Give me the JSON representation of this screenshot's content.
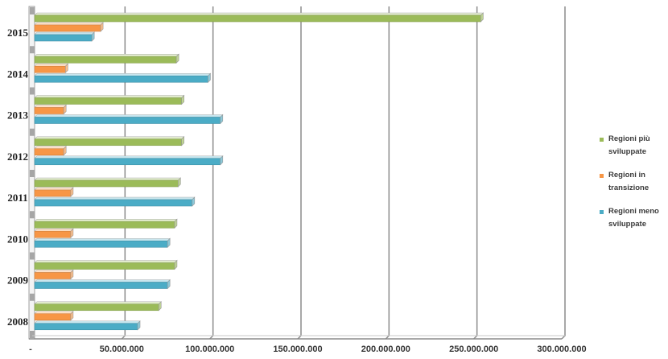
{
  "chart_data": {
    "type": "bar",
    "orientation": "horizontal",
    "categories": [
      "2008",
      "2009",
      "2010",
      "2011",
      "2012",
      "2013",
      "2014",
      "2015"
    ],
    "series": [
      {
        "name": "Regioni più sviluppate",
        "color": "#9BBB59",
        "values": [
          71000000,
          80000000,
          80000000,
          82000000,
          84000000,
          84000000,
          81000000,
          254000000
        ]
      },
      {
        "name": "Regioni in transizione",
        "color": "#F79646",
        "values": [
          21000000,
          21000000,
          21000000,
          21000000,
          17000000,
          17000000,
          18000000,
          38000000
        ]
      },
      {
        "name": "Regioni meno sviluppate",
        "color": "#4BACC6",
        "values": [
          59000000,
          76000000,
          76000000,
          90000000,
          106000000,
          106000000,
          99000000,
          33000000
        ]
      }
    ],
    "xlim": [
      0,
      300000000
    ],
    "x_ticks": {
      "values": [
        0,
        50000000,
        100000000,
        150000000,
        200000000,
        250000000,
        300000000
      ],
      "labels": [
        "-",
        "50.000.000",
        "100.000.000",
        "150.000.000",
        "200.000.000",
        "250.000.000",
        "300.000.000"
      ]
    },
    "grid": true,
    "legend_position": "right"
  }
}
